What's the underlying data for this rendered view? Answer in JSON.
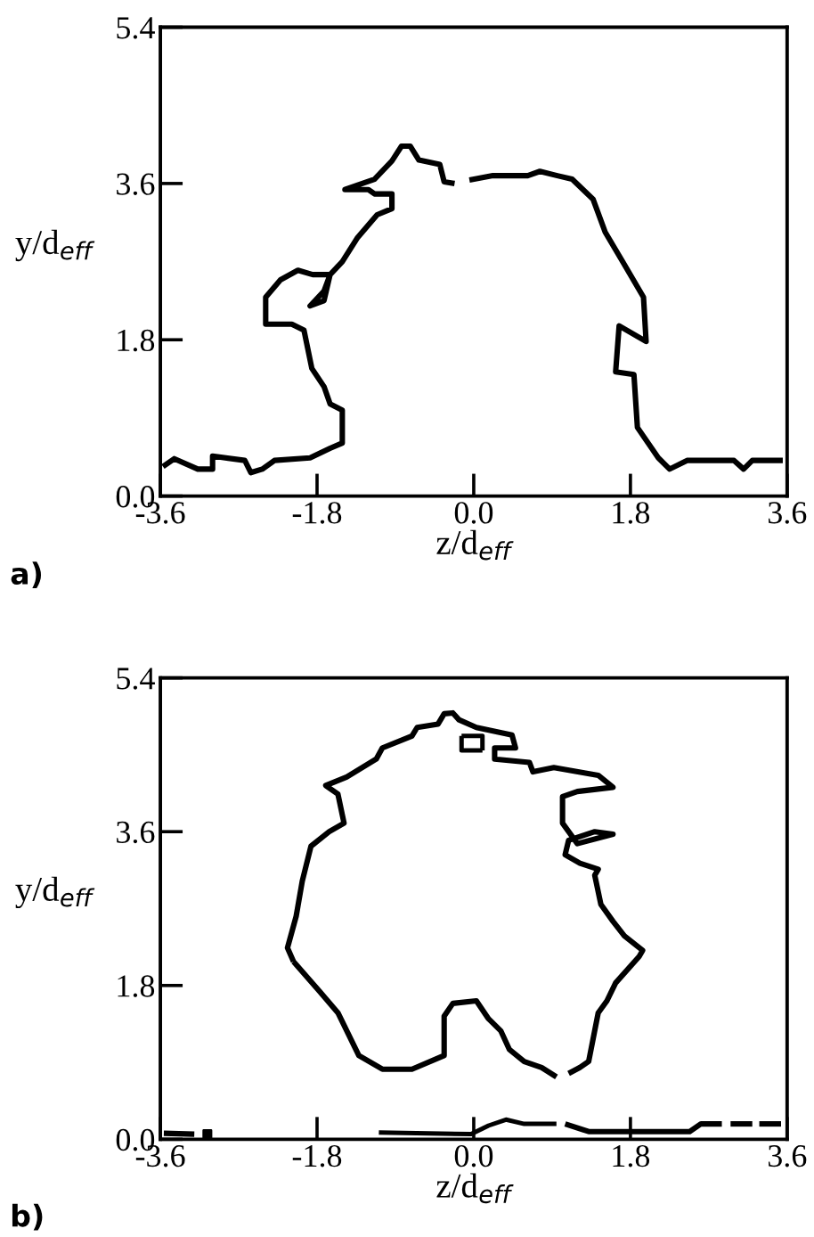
{
  "chart_data": [
    {
      "type": "line",
      "xlabel": "z/d$_{eff}$",
      "ylabel": "y/d$_{eff}$",
      "annotations": [
        "a)"
      ],
      "xlim": [
        -3.6,
        3.6
      ],
      "ylim": [
        0,
        5.4
      ],
      "xticks": [
        -3.6,
        -1.8,
        {
          "value": 0,
          "label": "0.0"
        },
        1.8,
        3.6
      ],
      "yticks": [
        {
          "value": 0,
          "label": "0.0"
        },
        1.8,
        3.6,
        5.4
      ],
      "marker": "none",
      "line_style": "solid",
      "series": [
        {
          "color": "#000000",
          "x": [
            -3.57,
            -3.44,
            -3.17,
            -3.0,
            -3.0,
            -2.63,
            -2.56,
            -2.43,
            -2.29,
            -1.88,
            -1.65,
            -1.51,
            -1.51,
            -1.65,
            -1.72,
            -1.86,
            -1.95,
            -2.09,
            -2.39,
            -2.39,
            -2.22,
            -2.02,
            -1.85,
            -1.65,
            -1.72,
            -1.88,
            -1.72,
            -1.65,
            -1.51,
            -1.34,
            -1.11,
            -0.94,
            -0.94,
            -1.14,
            -1.21,
            -1.48,
            -1.14,
            -0.94,
            -0.83,
            -0.73,
            -0.63,
            -0.39,
            -0.34,
            -0.22,
            null,
            -0.05,
            0.22,
            0.62,
            0.76,
            0.96,
            1.13,
            1.37,
            1.51,
            1.71,
            1.95,
            1.98,
            1.67,
            1.63,
            1.84,
            1.88,
            2.12,
            2.25,
            2.45,
            2.99,
            3.1,
            3.2,
            3.55
          ],
          "values": [
            0.34,
            0.43,
            0.31,
            0.31,
            0.46,
            0.41,
            0.27,
            0.31,
            0.41,
            0.44,
            0.55,
            0.61,
            0.99,
            1.06,
            1.26,
            1.47,
            1.91,
            1.98,
            1.98,
            2.29,
            2.49,
            2.6,
            2.55,
            2.55,
            2.36,
            2.19,
            2.25,
            2.55,
            2.7,
            2.97,
            3.24,
            3.31,
            3.48,
            3.48,
            3.53,
            3.53,
            3.65,
            3.86,
            4.03,
            4.03,
            3.87,
            3.82,
            3.62,
            3.6,
            null,
            3.64,
            3.69,
            3.69,
            3.74,
            3.69,
            3.65,
            3.42,
            3.04,
            2.7,
            2.29,
            1.78,
            1.96,
            1.43,
            1.4,
            0.79,
            0.44,
            0.31,
            0.41,
            0.41,
            0.31,
            0.41,
            0.41
          ]
        }
      ]
    },
    {
      "type": "line",
      "xlabel": "z/d$_{eff}$",
      "ylabel": "y/d$_{eff}$",
      "annotations": [
        "b)"
      ],
      "xlim": [
        -3.6,
        3.6
      ],
      "ylim": [
        0,
        5.4
      ],
      "xticks": [
        -3.6,
        -1.8,
        {
          "value": 0,
          "label": "0.0"
        },
        1.8,
        3.6
      ],
      "yticks": [
        {
          "value": 0,
          "label": "0.0"
        },
        1.8,
        3.6,
        5.4
      ],
      "marker": "none",
      "line_style": "solid",
      "series": [
        {
          "color": "#000000",
          "x": [
            -2.07,
            -1.77,
            -1.56,
            -1.32,
            -1.05,
            -0.71,
            -0.34,
            -0.34,
            -0.24,
            0.03,
            0.17,
            0.31,
            0.41,
            0.58,
            0.78,
            0.95,
            null,
            1.09,
            1.22,
            1.32,
            1.43,
            1.53,
            1.63,
            1.9,
            1.94,
            1.73,
            1.6,
            1.46,
            1.39,
            1.43,
            1.22,
            1.05,
            1.09,
            1.39,
            1.6,
            1.19,
            1.02,
            1.02,
            1.19,
            1.6,
            1.43,
            0.92,
            0.68,
            0.64,
            0.24,
            0.24,
            0.48,
            0.44,
            0.03,
            -0.17,
            -0.24,
            -0.34,
            -0.41,
            -0.65,
            -0.71,
            -1.05,
            -1.12,
            -1.46,
            -1.7,
            -1.56,
            -1.49,
            -1.66,
            -1.87,
            -1.97,
            -2.04,
            -2.14,
            -2.07
          ],
          "values": [
            2.08,
            1.73,
            1.48,
            0.98,
            0.82,
            0.82,
            0.98,
            1.44,
            1.59,
            1.62,
            1.41,
            1.27,
            1.05,
            0.91,
            0.84,
            0.73,
            null,
            0.77,
            0.84,
            0.91,
            1.48,
            1.62,
            1.83,
            2.14,
            2.21,
            2.38,
            2.55,
            2.75,
            3.09,
            3.16,
            3.23,
            3.33,
            3.5,
            3.6,
            3.57,
            3.46,
            3.7,
            4.01,
            4.07,
            4.12,
            4.26,
            4.35,
            4.3,
            4.41,
            4.45,
            4.58,
            4.58,
            4.73,
            4.82,
            4.91,
            4.99,
            4.98,
            4.86,
            4.82,
            4.72,
            4.58,
            4.45,
            4.24,
            4.14,
            4.04,
            3.7,
            3.6,
            3.43,
            3.02,
            2.61,
            2.24,
            2.08
          ]
        },
        {
          "color": "#000000",
          "x": [
            -3.56,
            -3.21
          ],
          "values": [
            0.07,
            0.06
          ]
        },
        {
          "type": "scatter",
          "marker": "square",
          "color": "#000000",
          "x": [
            -3.06
          ],
          "values": [
            0.06
          ]
        },
        {
          "color": "#000000",
          "x": [
            -1.09,
            -0.03,
            0.17,
            0.37,
            0.58,
            0.95
          ],
          "values": [
            0.08,
            0.06,
            0.16,
            0.23,
            0.18,
            0.18
          ]
        },
        {
          "color": "#000000",
          "x": [
            1.05,
            1.32,
            2.48,
            2.61,
            2.85
          ],
          "values": [
            0.18,
            0.09,
            0.09,
            0.18,
            0.18
          ]
        },
        {
          "color": "#000000",
          "x": [
            2.95,
            3.2
          ],
          "values": [
            0.18,
            0.18
          ]
        },
        {
          "color": "#000000",
          "x": [
            3.28,
            3.53
          ],
          "values": [
            0.18,
            0.18
          ]
        },
        {
          "color": "#000000",
          "x": [
            -0.14,
            0.1,
            0.1
          ],
          "values": [
            4.72,
            4.72,
            4.55
          ]
        },
        {
          "color": "#000000",
          "x": [
            0.1,
            -0.14,
            -0.14
          ],
          "values": [
            4.55,
            4.55,
            4.72
          ]
        }
      ]
    }
  ]
}
